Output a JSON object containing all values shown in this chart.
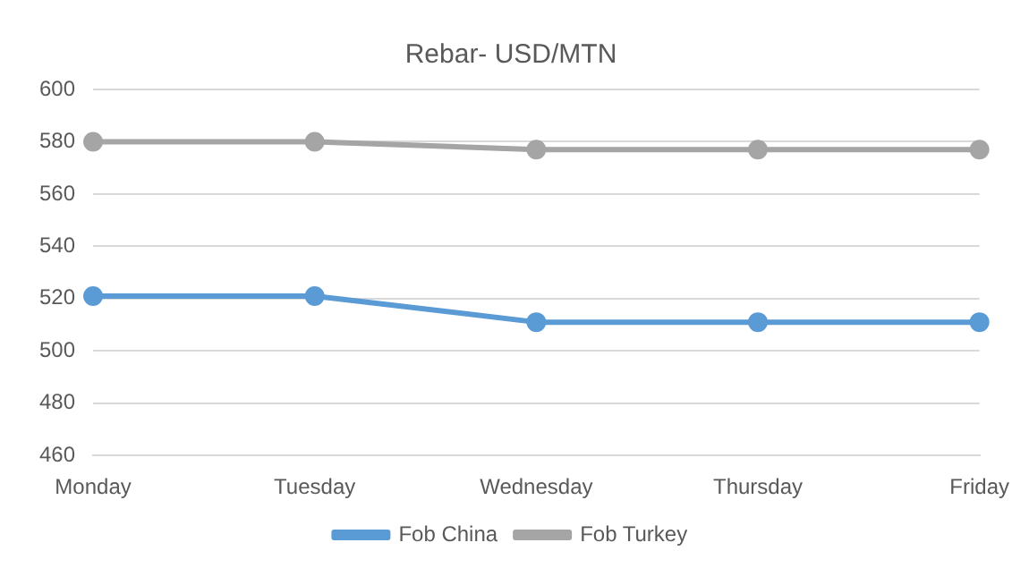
{
  "chart_data": {
    "type": "line",
    "title": "Rebar- USD/MTN",
    "categories": [
      "Monday",
      "Tuesday",
      "Wednesday",
      "Thursday",
      "Friday"
    ],
    "series": [
      {
        "name": "Fob China",
        "color": "#5b9bd5",
        "values": [
          521,
          521,
          511,
          511,
          511
        ]
      },
      {
        "name": "Fob Turkey",
        "color": "#a5a5a5",
        "values": [
          580,
          580,
          577,
          577,
          577
        ]
      }
    ],
    "ylim": [
      460,
      600
    ],
    "yticks": [
      460,
      480,
      500,
      520,
      540,
      560,
      580,
      600
    ],
    "grid": "y",
    "legend": "bottom",
    "marker": "circle"
  }
}
